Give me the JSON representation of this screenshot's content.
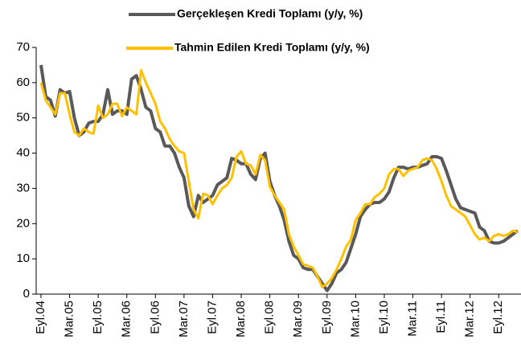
{
  "chart_data": {
    "type": "line",
    "categories": [
      "Eyl.04",
      null,
      null,
      null,
      null,
      null,
      "Mar.05",
      null,
      null,
      null,
      null,
      null,
      "Eyl.05",
      null,
      null,
      null,
      null,
      null,
      "Mar.06",
      null,
      null,
      null,
      null,
      null,
      "Eyl.06",
      null,
      null,
      null,
      null,
      null,
      "Mar.07",
      null,
      null,
      null,
      null,
      null,
      "Eyl.07",
      null,
      null,
      null,
      null,
      null,
      "Mar.08",
      null,
      null,
      null,
      null,
      null,
      "Eyl.08",
      null,
      null,
      null,
      null,
      null,
      "Mar.09",
      null,
      null,
      null,
      null,
      null,
      "Eyl.09",
      null,
      null,
      null,
      null,
      null,
      "Mar.10",
      null,
      null,
      null,
      null,
      null,
      "Eyl.10",
      null,
      null,
      null,
      null,
      null,
      "Mar.11",
      null,
      null,
      null,
      null,
      null,
      "Eyl.11",
      null,
      null,
      null,
      null,
      null,
      "Mar.12",
      null,
      null,
      null,
      null,
      null,
      "Eyl.12",
      null,
      null,
      null,
      null
    ],
    "series": [
      {
        "name": "Gerçekleşen Kredi Toplamı (y/y, %)",
        "color": "#595959",
        "values": [
          65,
          56,
          55,
          50.5,
          58,
          57,
          57.5,
          50,
          45,
          46,
          48.5,
          49,
          49,
          51,
          58,
          51,
          52,
          52,
          51,
          61,
          62,
          58,
          53,
          52,
          47,
          46,
          42,
          42,
          40,
          36,
          33,
          25,
          22,
          28,
          26,
          27,
          28,
          31,
          32,
          33,
          38.5,
          38,
          37,
          37,
          34,
          32.5,
          38.5,
          40,
          32,
          28,
          25,
          21,
          15,
          11,
          10,
          7.5,
          7,
          7,
          5,
          3,
          1,
          3,
          6,
          7,
          9,
          13,
          17,
          22,
          24,
          25.5,
          26,
          26,
          27,
          29,
          33,
          36,
          36,
          35.5,
          36,
          36,
          36.5,
          37,
          39,
          39,
          38.5,
          35,
          31,
          27,
          24.5,
          24,
          23.5,
          23,
          19,
          18,
          15,
          14.5,
          14.5,
          15,
          16,
          17,
          18
        ]
      },
      {
        "name": "Tahmin Edilen Kredi Toplamı (y/y, %)",
        "color": "#FFC000",
        "values": [
          60,
          55,
          53,
          51,
          57,
          57,
          51,
          46,
          45,
          47,
          46,
          45.5,
          53.5,
          50,
          51,
          54,
          54,
          50.5,
          53,
          52,
          51,
          63.5,
          60,
          57,
          54,
          49,
          47,
          44,
          42,
          40.5,
          40,
          32,
          24,
          21.5,
          28.5,
          28,
          25.5,
          28,
          30,
          31,
          33,
          39,
          40.5,
          37,
          36.5,
          34,
          39.5,
          38,
          30.5,
          28,
          26,
          24,
          17,
          13.5,
          11,
          8.5,
          8,
          7.5,
          5,
          2,
          3,
          4.5,
          7,
          10,
          13.5,
          15.5,
          21,
          23,
          25.5,
          25.5,
          27.5,
          28.5,
          30,
          34,
          35.5,
          35.5,
          33.5,
          35,
          35.5,
          36,
          38,
          38.5,
          38,
          35.5,
          32,
          28,
          25,
          24,
          23,
          22,
          19.5,
          17,
          15.5,
          16,
          15,
          16.5,
          17,
          16.5,
          17,
          18,
          17.5
        ]
      }
    ],
    "ylim": [
      0,
      70
    ],
    "yticks": [
      0,
      10,
      20,
      30,
      40,
      50,
      60,
      70
    ],
    "grid": false,
    "legend": "top"
  }
}
